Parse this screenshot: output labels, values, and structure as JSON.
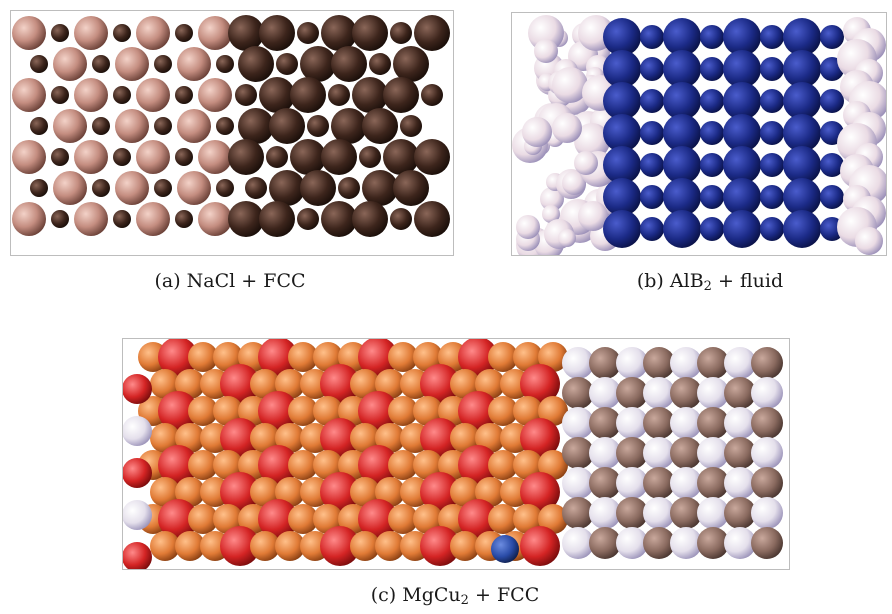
{
  "figure": {
    "panels": [
      {
        "id": "a",
        "label": "(a)",
        "compound": "NaCl",
        "partner": "FCC",
        "phases": [
          {
            "name": "NaCl",
            "colors": {
              "large": "#d49c8e",
              "small": "#4a2c22"
            }
          },
          {
            "name": "FCC",
            "colors": {
              "large": "#3b2219"
            }
          }
        ]
      },
      {
        "id": "b",
        "label": "(b)",
        "compound": "AlB",
        "subscript": "2",
        "partner": "fluid",
        "phases": [
          {
            "name": "fluid",
            "colors": {
              "particle": "#f3eaf0"
            }
          },
          {
            "name": "AlB2",
            "colors": {
              "large": "#1a2a86",
              "small": "#2a3fa8"
            }
          }
        ]
      },
      {
        "id": "c",
        "label": "(c)",
        "compound": "MgCu",
        "subscript": "2",
        "partner": "FCC",
        "phases": [
          {
            "name": "MgCu2",
            "colors": {
              "large": "#d42a2a",
              "small": "#e07a35"
            }
          },
          {
            "name": "FCC",
            "colors": {
              "light": "#e8e4ee",
              "dark": "#8a6a5f"
            }
          }
        ]
      }
    ]
  }
}
